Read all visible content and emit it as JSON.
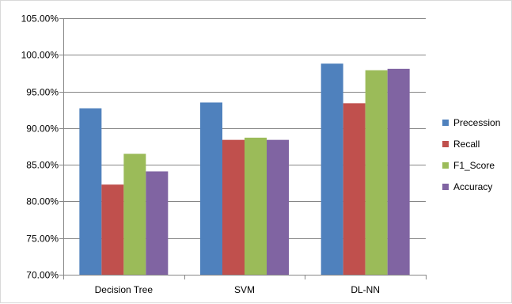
{
  "chart_data": {
    "type": "bar",
    "title": "",
    "xlabel": "",
    "ylabel": "",
    "categories": [
      "Decision Tree",
      "SVM",
      "DL-NN"
    ],
    "ylim": [
      70,
      105
    ],
    "y_ticks": [
      70,
      75,
      80,
      85,
      90,
      95,
      100,
      105
    ],
    "y_tick_labels": [
      "70.00%",
      "75.00%",
      "80.00%",
      "85.00%",
      "90.00%",
      "95.00%",
      "100.00%",
      "105.00%"
    ],
    "grid": true,
    "legend_position": "right",
    "series": [
      {
        "name": "Precession",
        "color": "#4f81bd",
        "values": [
          92.7,
          93.5,
          98.8
        ]
      },
      {
        "name": "Recall",
        "color": "#c0504d",
        "values": [
          82.3,
          88.4,
          93.4
        ]
      },
      {
        "name": "F1_Score",
        "color": "#9bbb59",
        "values": [
          86.5,
          88.7,
          97.9
        ]
      },
      {
        "name": "Accuracy",
        "color": "#8064a2",
        "values": [
          84.1,
          88.4,
          98.1
        ]
      }
    ]
  }
}
